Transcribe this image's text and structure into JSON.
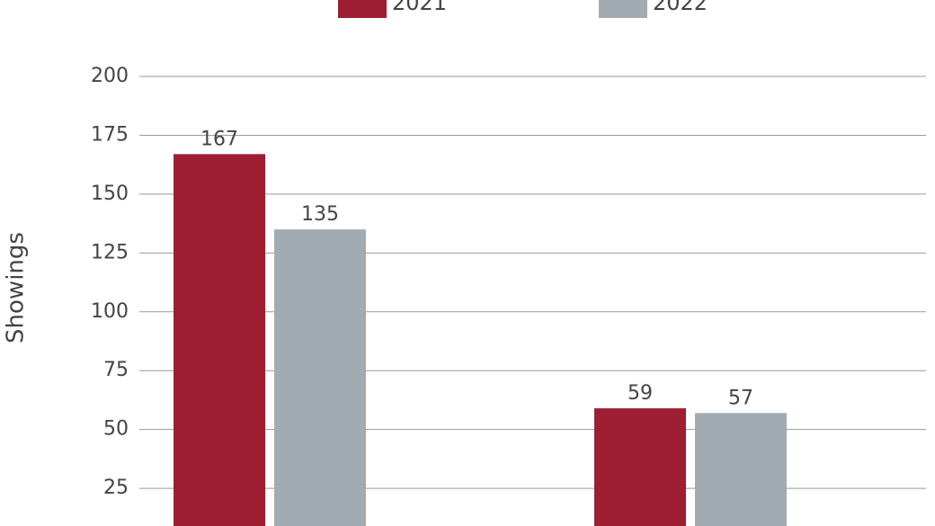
{
  "chart_data": {
    "type": "bar",
    "categories": [
      null,
      null
    ],
    "series": [
      {
        "name": "2021",
        "color": "#9e1f31",
        "values": [
          167,
          59
        ]
      },
      {
        "name": "2022",
        "color": "#a2abb2",
        "values": [
          135,
          57
        ]
      }
    ],
    "y_label": "Showings",
    "ylim": [
      9,
      200
    ],
    "yticks": [
      25,
      50,
      75,
      100,
      125,
      150,
      175,
      200
    ],
    "grid": true
  }
}
